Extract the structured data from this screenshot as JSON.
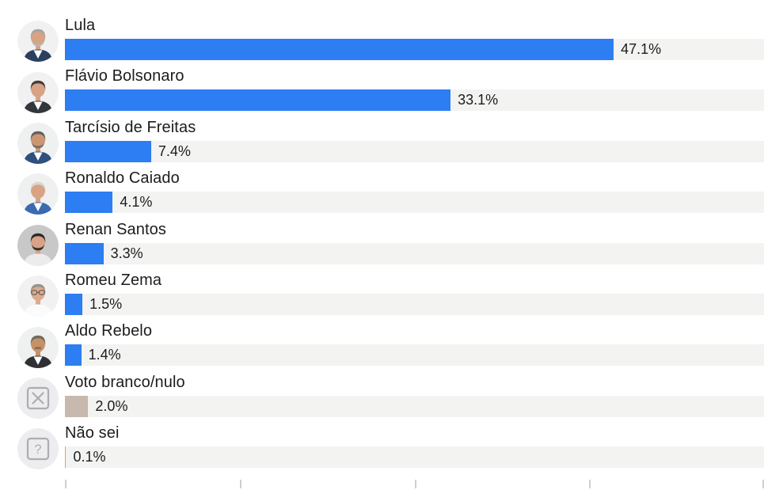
{
  "chart_data": {
    "type": "bar",
    "orientation": "horizontal",
    "title": "",
    "xlabel": "",
    "ylabel": "",
    "xlim": [
      0,
      60
    ],
    "x_ticks": [
      0,
      15,
      30,
      45,
      60
    ],
    "grid": false,
    "legend_position": "none",
    "categories": [
      "Lula",
      "Flávio Bolsonaro",
      "Tarcísio de Freitas",
      "Ronaldo Caiado",
      "Renan Santos",
      "Romeu Zema",
      "Aldo Rebelo",
      "Voto branco/nulo",
      "Não sei"
    ],
    "values": [
      47.1,
      33.1,
      7.4,
      4.1,
      3.3,
      1.5,
      1.4,
      2.0,
      0.1
    ],
    "rows": [
      {
        "name": "Lula",
        "value": 47.1,
        "label": "47.1%",
        "bar_color": "#2c7ef2",
        "avatar": {
          "kind": "photo",
          "bg": "#f1f1f1",
          "hair": "#a9a59e",
          "skin": "#d8a285",
          "beard": "#b9b6ae",
          "suit": "#2d3f60",
          "shirt": "#ffffff"
        }
      },
      {
        "name": "Flávio Bolsonaro",
        "value": 33.1,
        "label": "33.1%",
        "bar_color": "#2c7ef2",
        "avatar": {
          "kind": "photo",
          "bg": "#f1f1f1",
          "hair": "#453e38",
          "skin": "#d8a285",
          "suit": "#33363b",
          "shirt": "#ffffff"
        }
      },
      {
        "name": "Tarcísio de Freitas",
        "value": 7.4,
        "label": "7.4%",
        "bar_color": "#2c7ef2",
        "avatar": {
          "kind": "photo",
          "bg": "#eff0f0",
          "hair": "#5e6263",
          "skin": "#cd9673",
          "beard": "#7c6f63",
          "suit": "#2f4f7d",
          "shirt": "#ffffff"
        }
      },
      {
        "name": "Ronaldo Caiado",
        "value": 4.1,
        "label": "4.1%",
        "bar_color": "#2c7ef2",
        "avatar": {
          "kind": "photo",
          "bg": "#eff0f0",
          "hair": "#d9d7d3",
          "skin": "#d8a285",
          "suit": "#3a6ab1",
          "shirt": "#ffffff"
        }
      },
      {
        "name": "Renan Santos",
        "value": 3.3,
        "label": "3.3%",
        "bar_color": "#2c7ef2",
        "avatar": {
          "kind": "photo",
          "bg": "#c8c8c8",
          "hair": "#2d2926",
          "skin": "#d8a285",
          "beard": "#3b332c",
          "suit": "#ececec"
        }
      },
      {
        "name": "Romeu Zema",
        "value": 1.5,
        "label": "1.5%",
        "bar_color": "#2c7ef2",
        "avatar": {
          "kind": "photo",
          "bg": "#f1f1f1",
          "hair": "#98938c",
          "skin": "#dcab8d",
          "suit": "#fbfbfb",
          "glasses": true
        }
      },
      {
        "name": "Aldo Rebelo",
        "value": 1.4,
        "label": "1.4%",
        "bar_color": "#2c7ef2",
        "avatar": {
          "kind": "photo",
          "bg": "#eff0f0",
          "hair": "#6f6a62",
          "skin": "#c79066",
          "suit": "#2e3034",
          "shirt": "#ffffff",
          "mustache": true
        }
      },
      {
        "name": "Voto branco/nulo",
        "value": 2.0,
        "label": "2.0%",
        "bar_color": "#c7b9ae",
        "avatar": {
          "kind": "icon",
          "icon": "x",
          "bg": "#ededef",
          "stroke": "#abadb2"
        }
      },
      {
        "name": "Não sei",
        "value": 0.1,
        "label": "0.1%",
        "bar_color": "#e3a53f",
        "avatar": {
          "kind": "icon",
          "icon": "question",
          "bg": "#ededef",
          "stroke": "#abadb2"
        }
      }
    ]
  },
  "colors": {
    "track": "#f3f3f1",
    "bar_blue": "#2c7ef2",
    "bar_beige": "#c7b9ae",
    "bar_amber": "#e3a53f",
    "text": "#1c1c1e",
    "tick": "#cfcfcf"
  },
  "icons": {
    "x_icon": "invalid-vote",
    "question_icon": "dont-know"
  }
}
